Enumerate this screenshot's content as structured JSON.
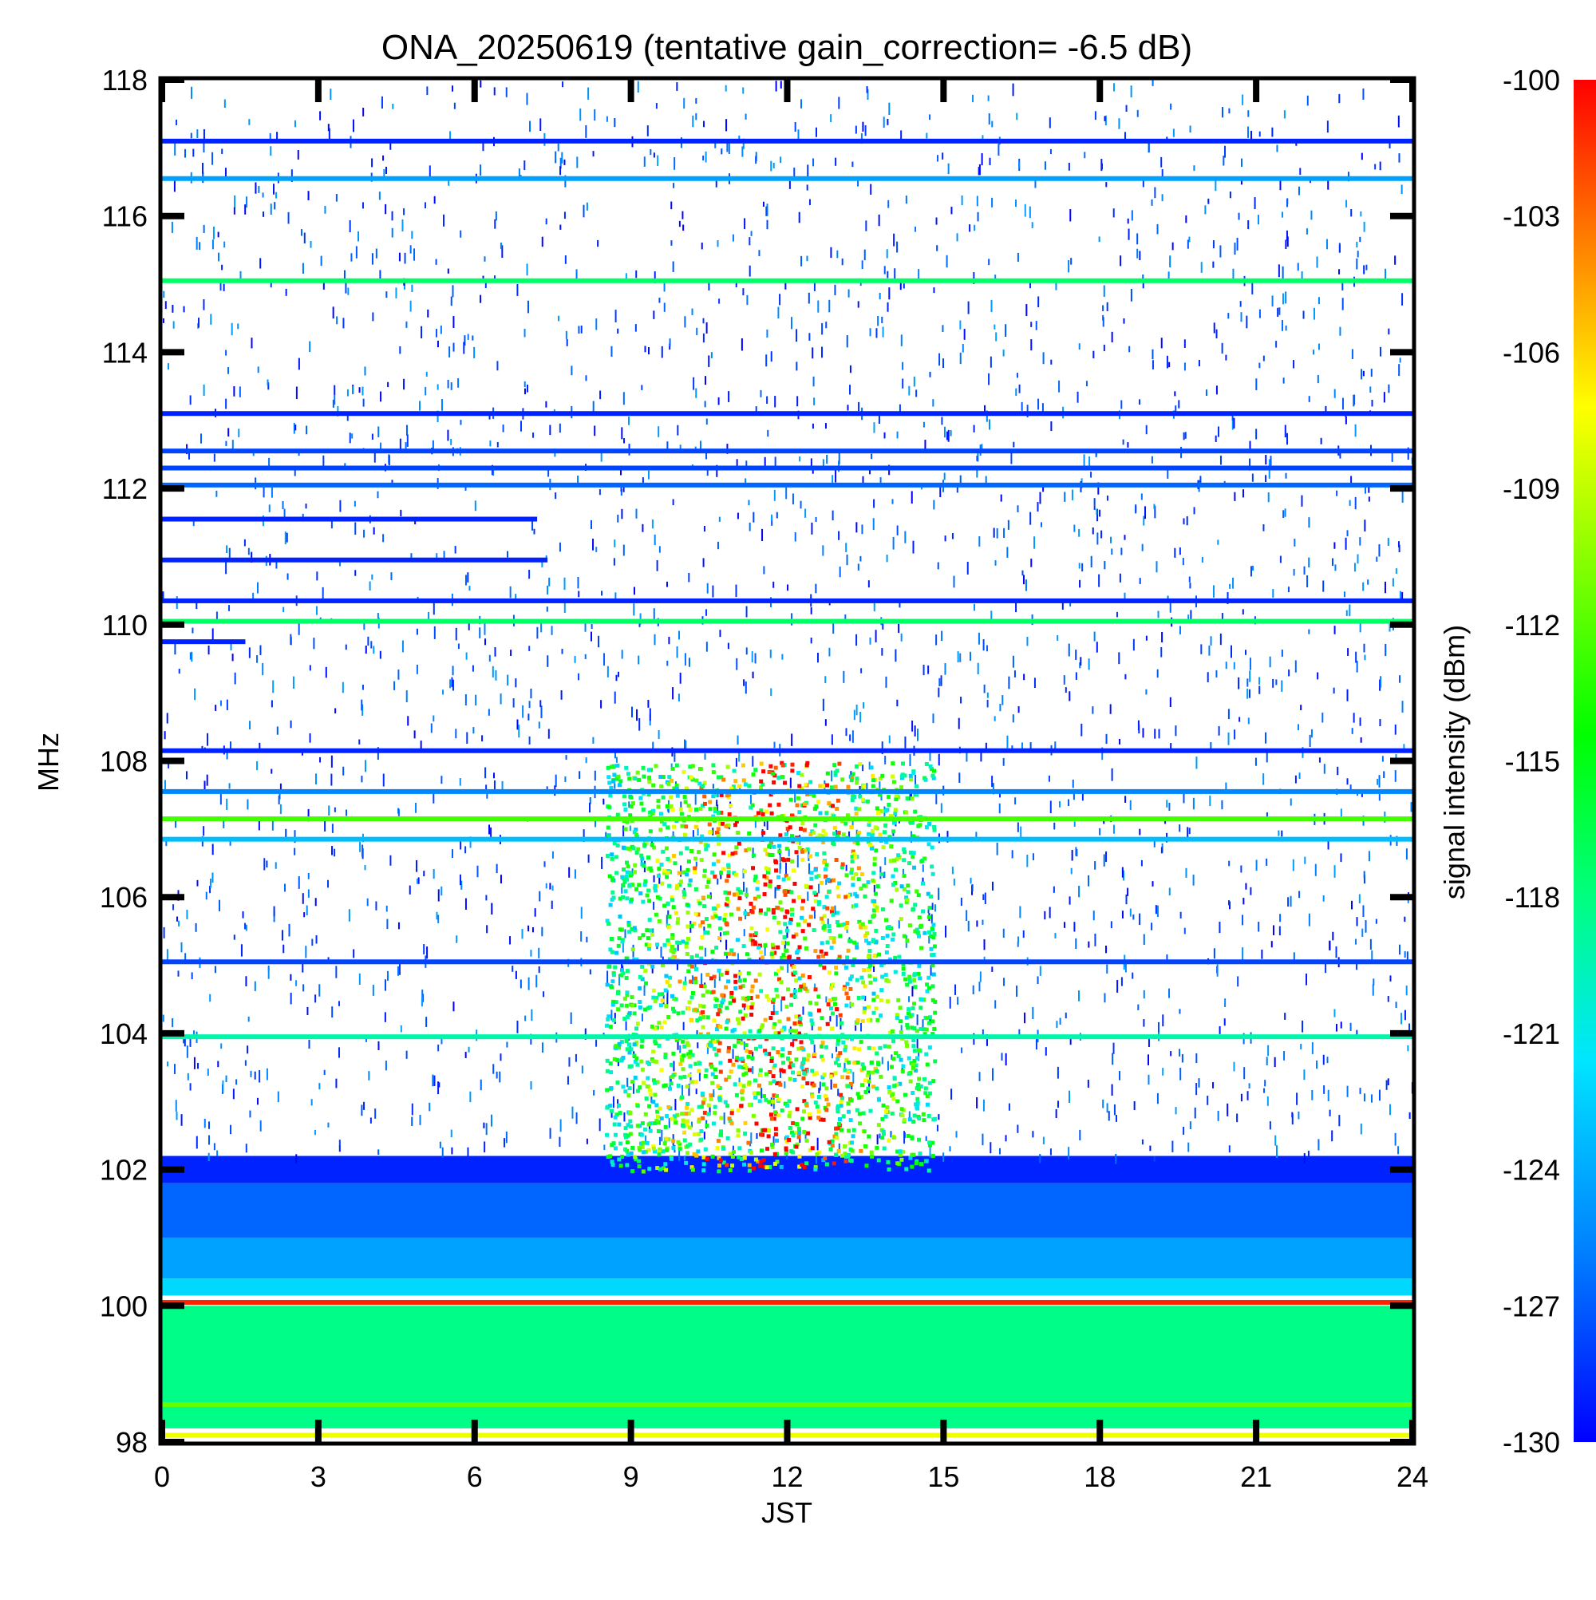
{
  "chart_data": {
    "type": "heatmap",
    "title": "ONA_20250619 (tentative gain_correction= -6.5 dB)",
    "xlabel": "JST",
    "ylabel": "MHz",
    "colorbar_label": "signal intensity (dBm)",
    "xlim": [
      0,
      24
    ],
    "ylim": [
      98,
      118
    ],
    "x_ticks": [
      "0",
      "3",
      "6",
      "9",
      "12",
      "15",
      "18",
      "21",
      "24"
    ],
    "y_ticks": [
      "98",
      "100",
      "102",
      "104",
      "106",
      "108",
      "110",
      "112",
      "114",
      "116",
      "118"
    ],
    "colorbar_range": [
      -130,
      -100
    ],
    "colorbar_ticks": [
      "-130",
      "-127",
      "-124",
      "-121",
      "-118",
      "-115",
      "-112",
      "-109",
      "-106",
      "-103",
      "-100"
    ],
    "colormap": [
      "#0000ff",
      "#0080ff",
      "#00e5ff",
      "#00ff80",
      "#00ff00",
      "#80ff00",
      "#ffff00",
      "#ff8000",
      "#ff0000"
    ],
    "persistent_bands": [
      {
        "freq": 117.1,
        "dbm": -129,
        "t": [
          0,
          24
        ]
      },
      {
        "freq": 116.55,
        "dbm": -125,
        "t": [
          0,
          24
        ]
      },
      {
        "freq": 115.05,
        "dbm": -118,
        "t": [
          0,
          24
        ]
      },
      {
        "freq": 113.1,
        "dbm": -129,
        "t": [
          0,
          24
        ]
      },
      {
        "freq": 112.55,
        "dbm": -128,
        "t": [
          0,
          24
        ]
      },
      {
        "freq": 112.3,
        "dbm": -128,
        "t": [
          0,
          24
        ]
      },
      {
        "freq": 112.05,
        "dbm": -127,
        "t": [
          0,
          24
        ]
      },
      {
        "freq": 111.55,
        "dbm": -129,
        "t": [
          0,
          7.2
        ]
      },
      {
        "freq": 110.95,
        "dbm": -129,
        "t": [
          0,
          7.4
        ]
      },
      {
        "freq": 110.35,
        "dbm": -129,
        "t": [
          0,
          24
        ]
      },
      {
        "freq": 110.05,
        "dbm": -118,
        "t": [
          0,
          24
        ]
      },
      {
        "freq": 109.75,
        "dbm": -129,
        "t": [
          0,
          1.6
        ]
      },
      {
        "freq": 108.15,
        "dbm": -129,
        "t": [
          0,
          24
        ]
      },
      {
        "freq": 107.55,
        "dbm": -126,
        "t": [
          0,
          24
        ]
      },
      {
        "freq": 107.15,
        "dbm": -113,
        "t": [
          0,
          24
        ]
      },
      {
        "freq": 106.85,
        "dbm": -124,
        "t": [
          0,
          24
        ]
      },
      {
        "freq": 105.05,
        "dbm": -128,
        "t": [
          0,
          24
        ]
      },
      {
        "freq": 103.95,
        "dbm": -120,
        "t": [
          0,
          24
        ]
      },
      {
        "freq": 100.05,
        "dbm": -101,
        "t": [
          0,
          24
        ]
      },
      {
        "freq": 98.55,
        "dbm": -112,
        "t": [
          0,
          24
        ]
      },
      {
        "freq": 98.1,
        "dbm": -108,
        "t": [
          0,
          24
        ]
      }
    ],
    "noise_floor_gradient": [
      {
        "freq_range": [
          101.8,
          102.2
        ],
        "dbm": -129
      },
      {
        "freq_range": [
          101.0,
          101.8
        ],
        "dbm": -127
      },
      {
        "freq_range": [
          100.4,
          101.0
        ],
        "dbm": -125
      },
      {
        "freq_range": [
          100.15,
          100.4
        ],
        "dbm": -123
      },
      {
        "freq_range": [
          98.2,
          100.0
        ],
        "dbm": -119
      }
    ],
    "daytime_enhancement": {
      "t": [
        8.5,
        14.8
      ],
      "freq_range": [
        102.0,
        108.0
      ],
      "dbm_range": [
        -124,
        -100
      ]
    }
  }
}
